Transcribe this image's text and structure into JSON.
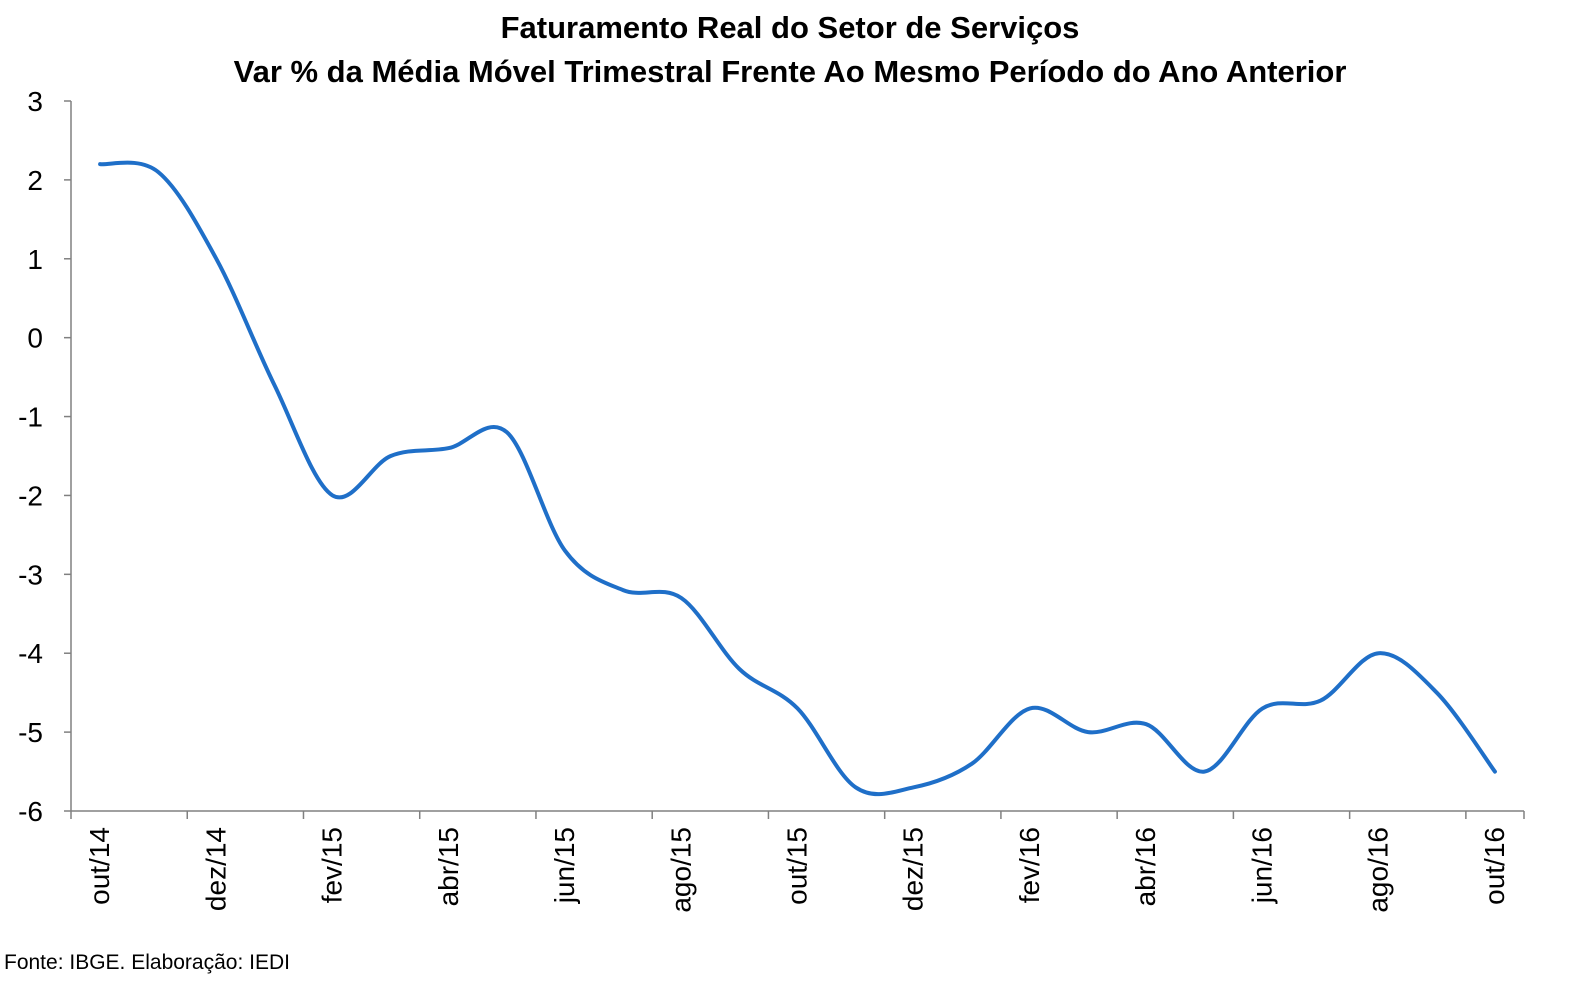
{
  "chart_data": {
    "type": "line",
    "title": "Faturamento Real do Setor de Serviços",
    "subtitle": "Var % da Média Móvel Trimestral Frente Ao Mesmo Período do Ano Anterior",
    "xlabel": "",
    "ylabel": "",
    "ylim": [
      -6,
      3
    ],
    "yticks": [
      3,
      2,
      1,
      0,
      -1,
      -2,
      -3,
      -4,
      -5,
      -6
    ],
    "x_tick_labels": [
      "out/14",
      "dez/14",
      "fev/15",
      "abr/15",
      "jun/15",
      "ago/15",
      "out/15",
      "dez/15",
      "fev/16",
      "abr/16",
      "jun/16",
      "ago/16",
      "out/16"
    ],
    "x": [
      "out/14",
      "nov/14",
      "dez/14",
      "jan/15",
      "fev/15",
      "mar/15",
      "abr/15",
      "mai/15",
      "jun/15",
      "jul/15",
      "ago/15",
      "set/15",
      "out/15",
      "nov/15",
      "dez/15",
      "jan/16",
      "fev/16",
      "mar/16",
      "abr/16",
      "mai/16",
      "jun/16",
      "jul/16",
      "ago/16",
      "set/16",
      "out/16"
    ],
    "series": [
      {
        "values": [
          2.2,
          2.1,
          1.0,
          -0.6,
          -2.0,
          -1.5,
          -1.4,
          -1.2,
          -2.7,
          -3.2,
          -3.3,
          -4.2,
          -4.7,
          -5.7,
          -5.7,
          -5.4,
          -4.7,
          -5.0,
          -4.9,
          -5.5,
          -4.7,
          -4.6,
          -4.0,
          -4.5,
          -5.5
        ],
        "color": "#1f6fc8"
      }
    ],
    "grid": false,
    "legend": "none"
  },
  "source_note": "Fonte: IBGE. Elaboração: IEDI"
}
